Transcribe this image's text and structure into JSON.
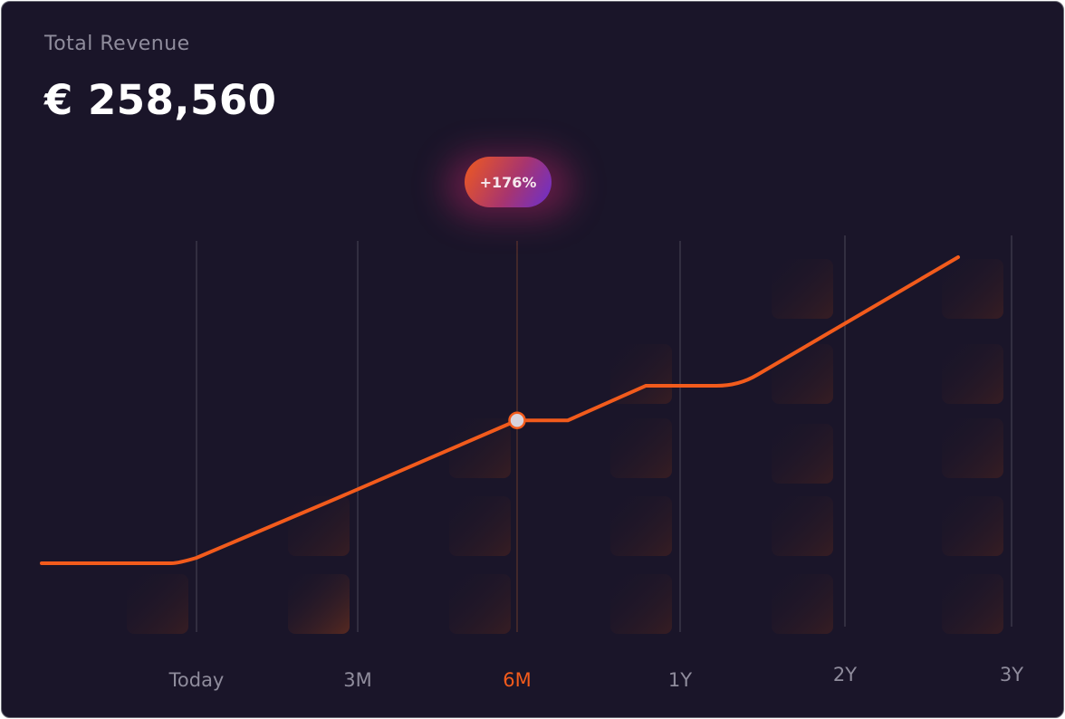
{
  "header": {
    "title": "Total Revenue",
    "amount": "€ 258,560"
  },
  "badge": {
    "label": "+176%"
  },
  "colors": {
    "background": "#1a1529",
    "line": "#f25b1c",
    "active_label": "#f25b1c",
    "label": "#8f8c9c",
    "badge_start": "#f05a1e",
    "badge_end": "#6a2fd0"
  },
  "chart_data": {
    "type": "line",
    "x_ticks": [
      "Today",
      "3M",
      "6M",
      "1Y",
      "2Y",
      "3Y"
    ],
    "active_tick": "6M",
    "series": [
      {
        "values": [
          {
            "x": "start",
            "y": 0
          },
          {
            "x": "Today",
            "y": 0
          },
          {
            "x": "3M",
            "y": 0.33
          },
          {
            "x": "6M",
            "y": 0.66
          },
          {
            "x": "1Y",
            "y": 0.82
          },
          {
            "x": "2Y",
            "y": 1.17
          },
          {
            "x": "3Y",
            "y": 1.41
          }
        ]
      }
    ],
    "highlight_point": {
      "x": "6M",
      "label": "+176%"
    },
    "grid": "vertical"
  }
}
